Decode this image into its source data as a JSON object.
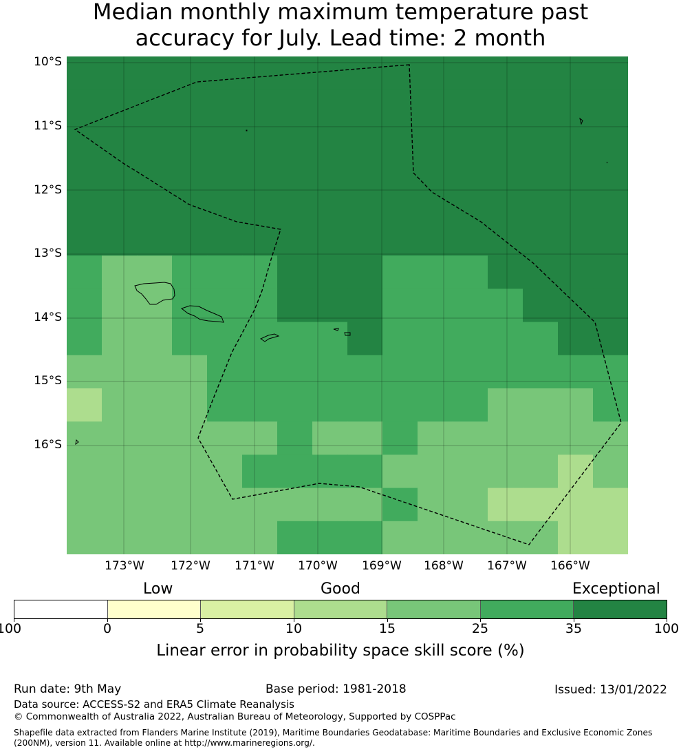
{
  "title": {
    "line1": "Median monthly maximum temperature past",
    "line2": "accuracy for July. Lead time: 2 month"
  },
  "map": {
    "lat_labels": [
      "10°S",
      "11°S",
      "12°S",
      "13°S",
      "14°S",
      "15°S",
      "16°S"
    ],
    "lon_labels": [
      "173°W",
      "172°W",
      "171°W",
      "170°W",
      "169°W",
      "168°W",
      "167°W",
      "166°W"
    ],
    "skill_grid": {
      "description_units": "skill category index per grid cell (rows north to south, cols west to east)",
      "rows": [
        [
          6,
          6,
          6,
          6,
          6,
          6,
          6,
          6,
          6,
          6,
          6,
          6,
          6,
          6,
          6,
          6
        ],
        [
          6,
          6,
          6,
          6,
          6,
          6,
          6,
          6,
          6,
          6,
          6,
          6,
          6,
          6,
          6,
          6
        ],
        [
          6,
          6,
          6,
          6,
          6,
          6,
          6,
          6,
          6,
          6,
          6,
          6,
          6,
          6,
          6,
          6
        ],
        [
          6,
          6,
          6,
          6,
          6,
          6,
          6,
          6,
          6,
          6,
          6,
          6,
          6,
          6,
          6,
          6
        ],
        [
          6,
          6,
          6,
          6,
          6,
          6,
          6,
          6,
          6,
          6,
          6,
          6,
          6,
          6,
          6,
          6
        ],
        [
          6,
          6,
          6,
          6,
          6,
          6,
          6,
          6,
          6,
          6,
          6,
          6,
          6,
          6,
          6,
          6
        ],
        [
          5,
          4,
          4,
          5,
          5,
          5,
          6,
          6,
          6,
          5,
          5,
          5,
          6,
          6,
          6,
          6
        ],
        [
          5,
          4,
          4,
          5,
          5,
          5,
          6,
          6,
          6,
          5,
          5,
          5,
          5,
          6,
          6,
          6
        ],
        [
          5,
          4,
          4,
          5,
          5,
          5,
          5,
          5,
          6,
          5,
          5,
          5,
          5,
          5,
          6,
          6
        ],
        [
          4,
          4,
          4,
          4,
          5,
          5,
          5,
          5,
          5,
          5,
          5,
          5,
          5,
          5,
          5,
          5
        ],
        [
          3,
          4,
          4,
          4,
          5,
          5,
          5,
          5,
          5,
          5,
          5,
          5,
          4,
          4,
          4,
          5
        ],
        [
          4,
          4,
          4,
          4,
          4,
          4,
          5,
          4,
          4,
          5,
          4,
          4,
          4,
          4,
          4,
          4
        ],
        [
          4,
          4,
          4,
          4,
          4,
          5,
          5,
          5,
          5,
          4,
          4,
          4,
          4,
          4,
          3,
          4
        ],
        [
          4,
          4,
          4,
          4,
          4,
          4,
          4,
          4,
          4,
          5,
          4,
          4,
          3,
          3,
          3,
          3
        ],
        [
          4,
          4,
          4,
          4,
          4,
          4,
          5,
          5,
          5,
          4,
          4,
          4,
          4,
          4,
          3,
          3
        ]
      ]
    }
  },
  "colorbar": {
    "category_labels": [
      "Low",
      "Good",
      "Exceptional"
    ],
    "ticks": [
      "-100",
      "0",
      "5",
      "10",
      "15",
      "25",
      "35",
      "100"
    ],
    "colors": [
      "#ffffff",
      "#ffffcc",
      "#d9f0a3",
      "#addd8e",
      "#78c679",
      "#41ab5d",
      "#238443"
    ],
    "label": "Linear error in probability space skill score (%)"
  },
  "footer": {
    "run_date": "Run date: 9th May",
    "base_period": "Base period: 1981-2018",
    "issued": "Issued: 13/01/2022",
    "data_source": "Data source: ACCESS-S2 and ERA5 Climate Reanalysis",
    "copyright": "© Commonwealth of Australia 2022, Australian Bureau of Meteorology, Supported by COSPPac",
    "shapefile": "Shapefile data extracted from Flanders Marine Institute (2019), Maritime Boundaries Geodatabase: Maritime Boundaries and Exclusive Economic Zones (200NM), version 11. Available online at http://www.marineregions.org/."
  }
}
